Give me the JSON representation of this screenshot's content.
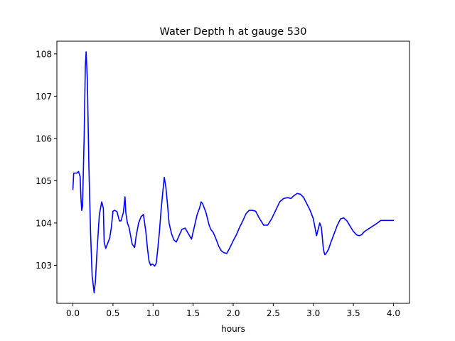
{
  "chart_data": {
    "type": "line",
    "title": "Water Depth h at gauge 530",
    "xlabel": "hours",
    "ylabel": "",
    "xlim": [
      -0.2,
      4.2
    ],
    "ylim": [
      102.1,
      108.3
    ],
    "x_ticks": [
      0.0,
      0.5,
      1.0,
      1.5,
      2.0,
      2.5,
      3.0,
      3.5,
      4.0
    ],
    "x_tick_labels": [
      "0.0",
      "0.5",
      "1.0",
      "1.5",
      "2.0",
      "2.5",
      "3.0",
      "3.5",
      "4.0"
    ],
    "y_ticks": [
      103,
      104,
      105,
      106,
      107,
      108
    ],
    "y_tick_labels": [
      "103",
      "104",
      "105",
      "106",
      "107",
      "108"
    ],
    "grid": false,
    "series": [
      {
        "color": "#0000ff",
        "x": [
          0.0,
          0.01,
          0.05,
          0.07,
          0.09,
          0.1,
          0.11,
          0.12,
          0.14,
          0.155,
          0.165,
          0.18,
          0.2,
          0.22,
          0.24,
          0.265,
          0.28,
          0.3,
          0.33,
          0.36,
          0.38,
          0.39,
          0.41,
          0.43,
          0.46,
          0.48,
          0.5,
          0.52,
          0.55,
          0.58,
          0.6,
          0.63,
          0.65,
          0.66,
          0.68,
          0.7,
          0.72,
          0.74,
          0.77,
          0.79,
          0.82,
          0.85,
          0.88,
          0.91,
          0.93,
          0.95,
          0.97,
          0.99,
          1.0,
          1.02,
          1.04,
          1.06,
          1.08,
          1.1,
          1.12,
          1.14,
          1.16,
          1.18,
          1.2,
          1.23,
          1.26,
          1.29,
          1.32,
          1.36,
          1.4,
          1.44,
          1.48,
          1.52,
          1.55,
          1.58,
          1.6,
          1.62,
          1.66,
          1.7,
          1.72,
          1.75,
          1.78,
          1.82,
          1.85,
          1.88,
          1.92,
          1.96,
          2.0,
          2.04,
          2.08,
          2.12,
          2.16,
          2.2,
          2.24,
          2.28,
          2.33,
          2.38,
          2.43,
          2.48,
          2.53,
          2.58,
          2.63,
          2.68,
          2.72,
          2.76,
          2.8,
          2.84,
          2.88,
          2.92,
          2.96,
          3.0,
          3.04,
          3.08,
          3.1,
          3.11,
          3.12,
          3.125,
          3.135,
          3.145,
          3.16,
          3.19,
          3.22,
          3.26,
          3.3,
          3.34,
          3.38,
          3.42,
          3.46,
          3.5,
          3.54,
          3.57,
          3.6,
          3.64,
          3.68,
          3.72,
          3.76,
          3.8,
          3.84,
          3.88,
          3.92,
          3.96,
          4.0
        ],
        "y": [
          104.8,
          105.18,
          105.18,
          105.22,
          105.1,
          104.6,
          104.3,
          104.4,
          106.0,
          107.7,
          108.05,
          107.4,
          105.3,
          103.8,
          102.75,
          102.35,
          102.6,
          103.3,
          104.2,
          104.5,
          104.35,
          103.55,
          103.4,
          103.5,
          103.65,
          103.9,
          104.28,
          104.3,
          104.27,
          104.05,
          104.05,
          104.25,
          104.62,
          104.25,
          104.0,
          103.9,
          103.7,
          103.5,
          103.42,
          103.7,
          104.0,
          104.15,
          104.2,
          103.8,
          103.4,
          103.1,
          103.0,
          103.03,
          103.02,
          102.98,
          103.05,
          103.4,
          103.8,
          104.3,
          104.7,
          105.08,
          104.85,
          104.45,
          104.0,
          103.75,
          103.6,
          103.55,
          103.68,
          103.85,
          103.88,
          103.75,
          103.62,
          103.95,
          104.2,
          104.35,
          104.5,
          104.45,
          104.25,
          103.95,
          103.85,
          103.78,
          103.65,
          103.45,
          103.35,
          103.3,
          103.28,
          103.42,
          103.58,
          103.72,
          103.9,
          104.05,
          104.22,
          104.3,
          104.3,
          104.28,
          104.1,
          103.95,
          103.95,
          104.1,
          104.3,
          104.5,
          104.58,
          104.6,
          104.58,
          104.65,
          104.7,
          104.68,
          104.6,
          104.45,
          104.3,
          104.1,
          103.7,
          104.0,
          103.9,
          103.7,
          103.5,
          103.4,
          103.3,
          103.25,
          103.28,
          103.38,
          103.55,
          103.75,
          103.95,
          104.1,
          104.12,
          104.05,
          103.92,
          103.8,
          103.72,
          103.7,
          103.72,
          103.8,
          103.85,
          103.9,
          103.95,
          104.0,
          104.06,
          104.06,
          104.06,
          104.06,
          104.06
        ]
      }
    ]
  }
}
